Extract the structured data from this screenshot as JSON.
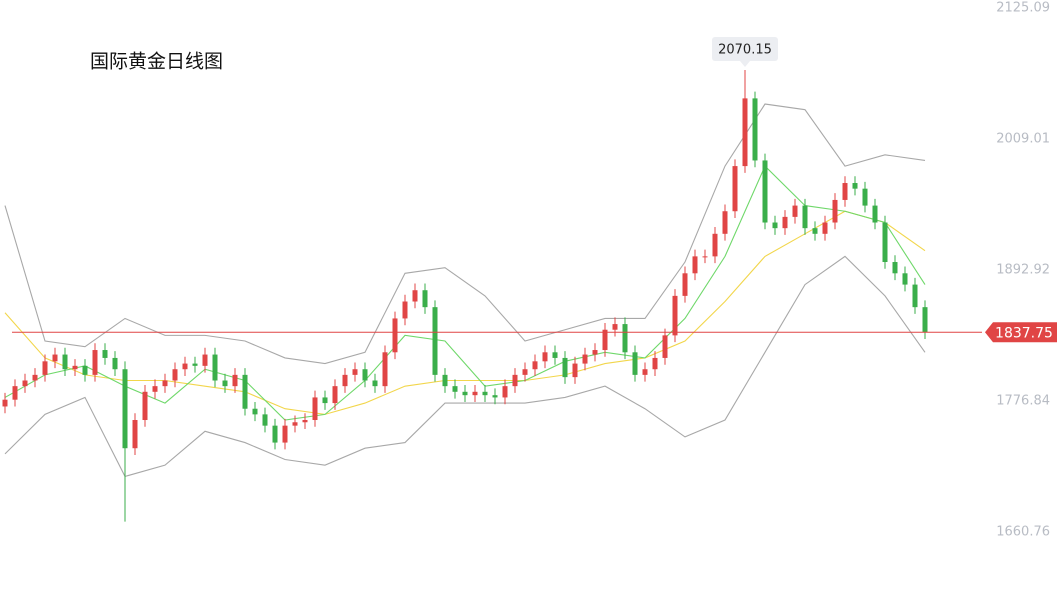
{
  "chart_data": {
    "type": "candlestick",
    "title": "国际黄金日线图",
    "ylim": [
      1660.76,
      2125.09
    ],
    "yticks": [
      2125.09,
      2009.01,
      1892.92,
      1776.84,
      1660.76
    ],
    "up_color": "#e04545",
    "down_color": "#3aae4a",
    "open": [
      1772,
      1778,
      1790,
      1795,
      1800,
      1812,
      1818,
      1805,
      1808,
      1800,
      1822,
      1815,
      1805,
      1735,
      1760,
      1785,
      1790,
      1795,
      1805,
      1810,
      1808,
      1818,
      1795,
      1790,
      1800,
      1770,
      1765,
      1755,
      1740,
      1755,
      1758,
      1760,
      1780,
      1775,
      1790,
      1800,
      1805,
      1795,
      1790,
      1820,
      1850,
      1865,
      1875,
      1860,
      1800,
      1790,
      1785,
      1782,
      1785,
      1782,
      1780,
      1790,
      1800,
      1805,
      1812,
      1820,
      1815,
      1798,
      1810,
      1818,
      1822,
      1840,
      1845,
      1820,
      1800,
      1805,
      1815,
      1835,
      1870,
      1890,
      1905,
      1905,
      1925,
      1945,
      1985,
      2045,
      1990,
      1935,
      1930,
      1940,
      1950,
      1930,
      1925,
      1935,
      1955,
      1970,
      1965,
      1950,
      1935,
      1900,
      1890,
      1880,
      1860
    ],
    "high": [
      1784,
      1796,
      1801,
      1806,
      1818,
      1824,
      1824,
      1814,
      1814,
      1828,
      1828,
      1821,
      1812,
      1766,
      1791,
      1796,
      1801,
      1811,
      1816,
      1816,
      1824,
      1824,
      1801,
      1806,
      1806,
      1776,
      1771,
      1761,
      1761,
      1764,
      1766,
      1786,
      1786,
      1796,
      1806,
      1811,
      1811,
      1801,
      1826,
      1856,
      1871,
      1881,
      1881,
      1866,
      1806,
      1796,
      1791,
      1791,
      1791,
      1788,
      1796,
      1806,
      1811,
      1818,
      1826,
      1826,
      1821,
      1816,
      1824,
      1828,
      1846,
      1851,
      1851,
      1826,
      1811,
      1821,
      1841,
      1876,
      1896,
      1911,
      1911,
      1931,
      1951,
      1991,
      2070.15,
      2051,
      1996,
      1941,
      1946,
      1956,
      1956,
      1936,
      1941,
      1961,
      1976,
      1976,
      1971,
      1956,
      1941,
      1906,
      1896,
      1886,
      1866
    ],
    "low": [
      1766,
      1772,
      1784,
      1789,
      1794,
      1806,
      1799,
      1799,
      1794,
      1794,
      1809,
      1799,
      1670,
      1729,
      1754,
      1779,
      1784,
      1789,
      1799,
      1802,
      1802,
      1789,
      1784,
      1784,
      1764,
      1759,
      1749,
      1734,
      1734,
      1749,
      1752,
      1754,
      1769,
      1769,
      1784,
      1794,
      1789,
      1784,
      1784,
      1814,
      1844,
      1859,
      1854,
      1794,
      1784,
      1779,
      1776,
      1776,
      1776,
      1774,
      1774,
      1784,
      1794,
      1799,
      1806,
      1809,
      1792,
      1792,
      1804,
      1812,
      1816,
      1834,
      1814,
      1794,
      1794,
      1799,
      1809,
      1829,
      1864,
      1884,
      1899,
      1899,
      1919,
      1939,
      1979,
      1984,
      1929,
      1924,
      1924,
      1934,
      1924,
      1919,
      1919,
      1929,
      1949,
      1959,
      1944,
      1929,
      1894,
      1884,
      1874,
      1854,
      1831.75
    ],
    "close": [
      1778,
      1790,
      1795,
      1800,
      1812,
      1818,
      1805,
      1808,
      1800,
      1822,
      1815,
      1805,
      1735,
      1760,
      1785,
      1790,
      1795,
      1805,
      1810,
      1808,
      1818,
      1795,
      1790,
      1800,
      1770,
      1765,
      1755,
      1740,
      1755,
      1758,
      1760,
      1780,
      1775,
      1790,
      1800,
      1805,
      1795,
      1790,
      1820,
      1850,
      1865,
      1875,
      1860,
      1800,
      1790,
      1785,
      1782,
      1785,
      1782,
      1780,
      1790,
      1800,
      1805,
      1812,
      1820,
      1815,
      1798,
      1810,
      1818,
      1822,
      1840,
      1845,
      1820,
      1800,
      1805,
      1815,
      1835,
      1870,
      1890,
      1905,
      1905,
      1925,
      1945,
      1985,
      2045,
      1990,
      1935,
      1930,
      1940,
      1950,
      1930,
      1925,
      1935,
      1955,
      1970,
      1965,
      1950,
      1935,
      1900,
      1890,
      1880,
      1860,
      1837.75
    ],
    "overlay_x": [
      0,
      4,
      8,
      12,
      16,
      20,
      24,
      28,
      32,
      36,
      40,
      44,
      48,
      52,
      56,
      60,
      64,
      68,
      72,
      76,
      80,
      84,
      88,
      92
    ],
    "overlays": [
      {
        "color": "#a8a8a8",
        "values": [
          1950,
          1830,
          1825,
          1850,
          1835,
          1835,
          1830,
          1815,
          1810,
          1820,
          1890,
          1895,
          1870,
          1830,
          1840,
          1850,
          1850,
          1900,
          1985,
          2040,
          2035,
          1985,
          1995,
          1990
        ]
      },
      {
        "color": "#a8a8a8",
        "values": [
          1730,
          1765,
          1780,
          1710,
          1720,
          1750,
          1740,
          1725,
          1720,
          1735,
          1740,
          1775,
          1775,
          1775,
          1780,
          1790,
          1770,
          1745,
          1760,
          1820,
          1880,
          1905,
          1870,
          1820
        ]
      },
      {
        "color": "#f2d64b",
        "values": [
          1855,
          1815,
          1800,
          1795,
          1795,
          1790,
          1785,
          1770,
          1765,
          1775,
          1790,
          1795,
          1795,
          1795,
          1800,
          1810,
          1815,
          1830,
          1865,
          1905,
          1925,
          1945,
          1935,
          1910
        ]
      },
      {
        "color": "#6fd86a",
        "values": [
          1780,
          1800,
          1808,
          1790,
          1775,
          1805,
          1795,
          1760,
          1765,
          1795,
          1835,
          1830,
          1790,
          1795,
          1812,
          1820,
          1815,
          1850,
          1905,
          1985,
          1950,
          1945,
          1935,
          1880
        ]
      }
    ]
  }
}
